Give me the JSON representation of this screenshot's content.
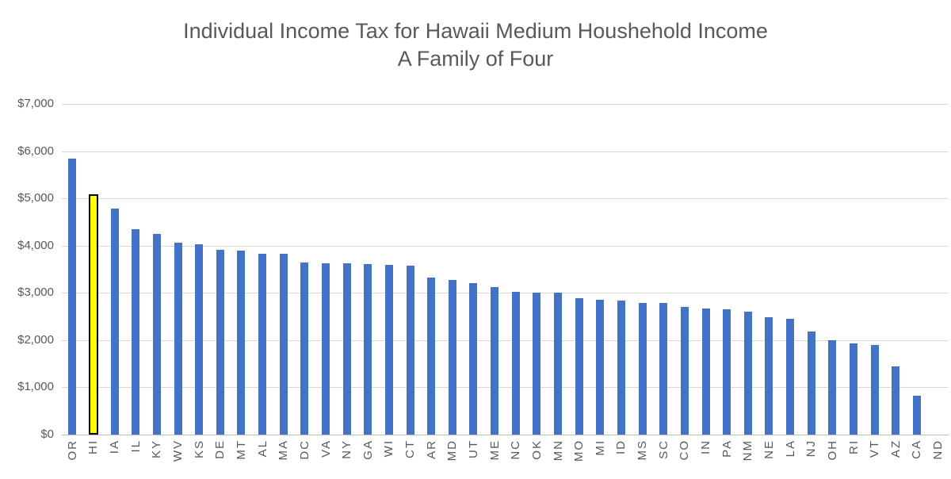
{
  "title": {
    "line1": "Individual Income Tax for Hawaii Medium Houshehold Income",
    "line2": "A Family of Four"
  },
  "colors": {
    "bar": "#4472C4",
    "highlight_fill": "#FFFF00",
    "highlight_border": "#000000",
    "gridline": "#D9D9D9",
    "axis_line": "#BFBFBF",
    "text": "#595959"
  },
  "chart_data": {
    "type": "bar",
    "title": "Individual Income Tax for Hawaii Medium Houshehold Income A Family of Four",
    "xlabel": "",
    "ylabel": "",
    "ylim": [
      0,
      7000
    ],
    "ytick_step": 1000,
    "ytick_labels": [
      "$0",
      "$1,000",
      "$2,000",
      "$3,000",
      "$4,000",
      "$5,000",
      "$6,000",
      "$7,000"
    ],
    "grid": true,
    "legend": false,
    "highlight_category": "HI",
    "categories": [
      "OR",
      "HI",
      "IA",
      "IL",
      "KY",
      "WV",
      "KS",
      "DE",
      "MT",
      "AL",
      "MA",
      "DC",
      "VA",
      "NY",
      "GA",
      "WI",
      "CT",
      "AR",
      "MD",
      "UT",
      "ME",
      "NC",
      "OK",
      "MN",
      "MO",
      "MI",
      "ID",
      "MS",
      "SC",
      "CO",
      "IN",
      "PA",
      "NM",
      "NE",
      "LA",
      "NJ",
      "OH",
      "RI",
      "VT",
      "AZ",
      "CA",
      "ND"
    ],
    "values": [
      5840,
      5080,
      4780,
      4350,
      4250,
      4060,
      4030,
      3920,
      3900,
      3830,
      3820,
      3640,
      3630,
      3620,
      3610,
      3590,
      3570,
      3320,
      3270,
      3200,
      3130,
      3020,
      3010,
      3000,
      2890,
      2860,
      2830,
      2790,
      2780,
      2700,
      2670,
      2660,
      2610,
      2490,
      2450,
      2190,
      2000,
      1930,
      1890,
      1450,
      820,
      0
    ]
  }
}
